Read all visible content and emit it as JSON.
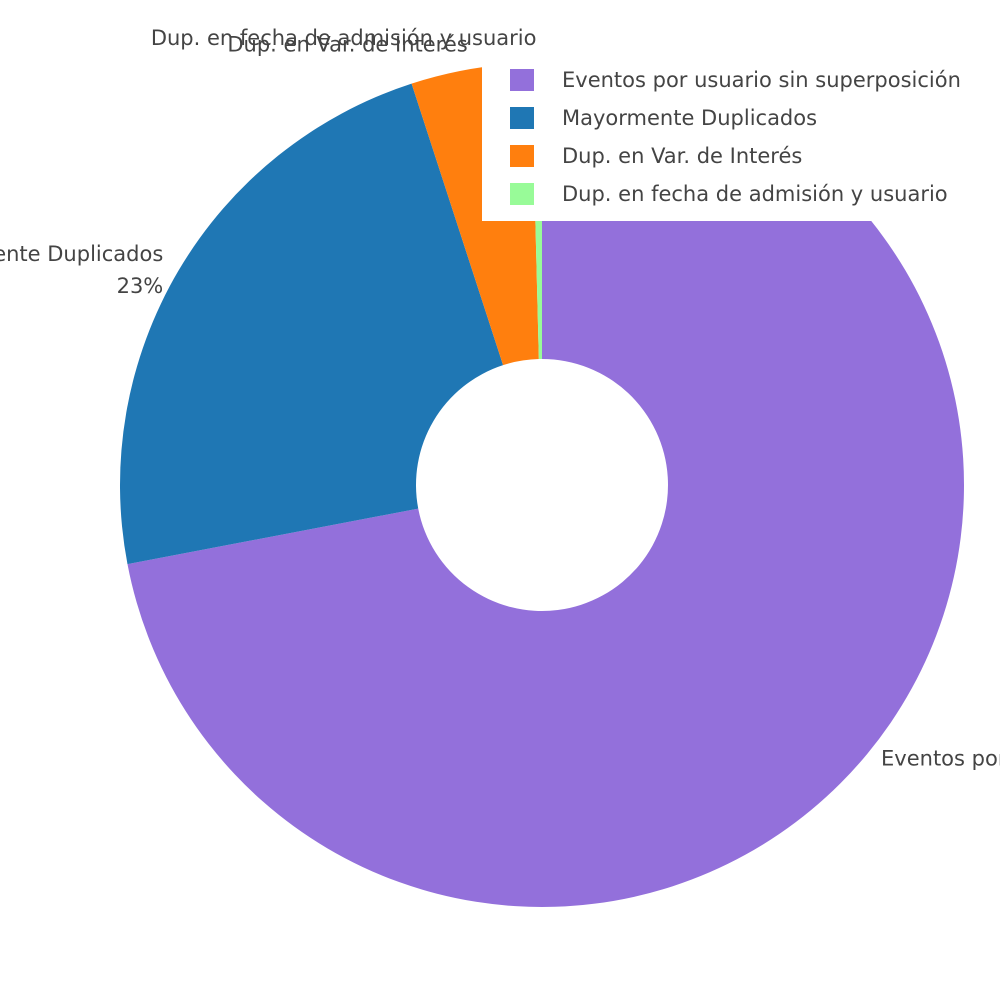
{
  "chart_data": {
    "type": "pie",
    "hole": true,
    "legend_position": "top-right",
    "slices": [
      {
        "label": "Eventos por usuario sin superposición",
        "value": 72,
        "percent_text": "",
        "color": "#9370DB"
      },
      {
        "label": "Mayormente Duplicados",
        "value": 23,
        "percent_text": "23%",
        "color": "#1F77B4"
      },
      {
        "label": "Dup. en Var. de Interés",
        "value": 4.6,
        "percent_text": "",
        "color": "#FF7F0E"
      },
      {
        "label": "Dup. en fecha de admisión y usuario",
        "value": 0.4,
        "percent_text": "",
        "color": "#98FB98"
      }
    ]
  }
}
